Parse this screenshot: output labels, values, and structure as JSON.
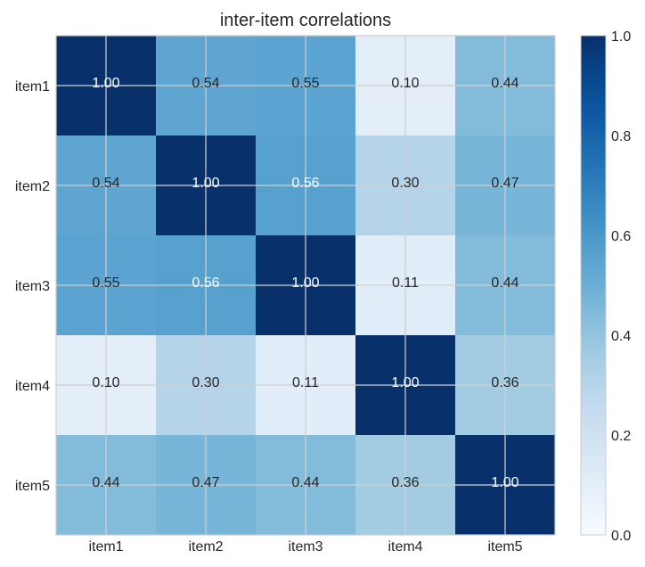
{
  "chart_data": {
    "type": "heatmap",
    "title": "inter-item correlations",
    "x_categories": [
      "item1",
      "item2",
      "item3",
      "item4",
      "item5"
    ],
    "y_categories": [
      "item1",
      "item2",
      "item3",
      "item4",
      "item5"
    ],
    "values": [
      [
        1.0,
        0.54,
        0.55,
        0.1,
        0.44
      ],
      [
        0.54,
        1.0,
        0.56,
        0.3,
        0.47
      ],
      [
        0.55,
        0.56,
        1.0,
        0.11,
        0.44
      ],
      [
        0.1,
        0.3,
        0.11,
        1.0,
        0.36
      ],
      [
        0.44,
        0.47,
        0.44,
        0.36,
        1.0
      ]
    ],
    "value_format": "0.00",
    "colormap": "Blues",
    "vmin": 0.0,
    "vmax": 1.0,
    "colorbar_ticks": [
      "0.0",
      "0.2",
      "0.4",
      "0.6",
      "0.8",
      "1.0"
    ],
    "grid": true,
    "colorbar_position": "right"
  }
}
